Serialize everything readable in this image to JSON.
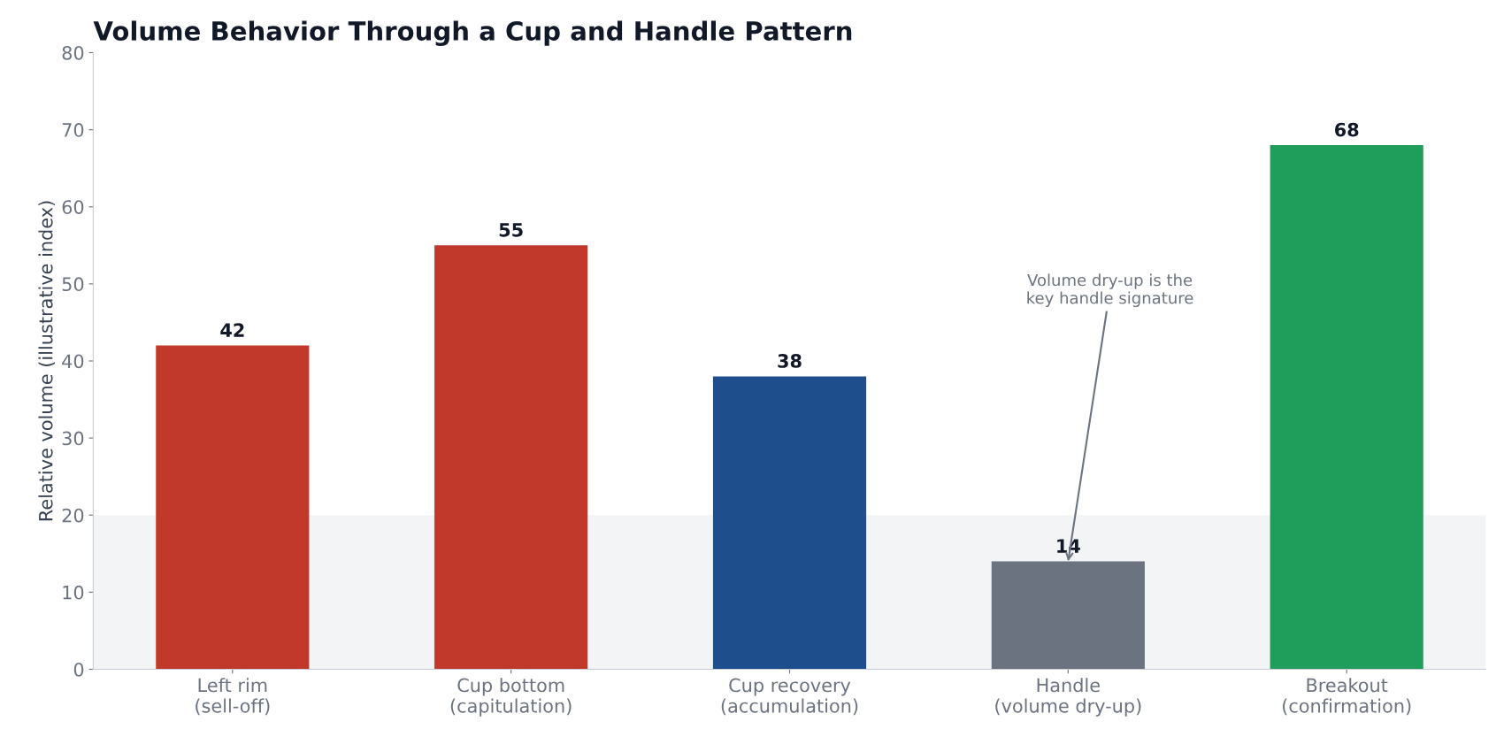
{
  "chart_data": {
    "type": "bar",
    "title": "Volume Behavior Through a Cup and Handle Pattern",
    "ylabel": "Relative volume (illustrative index)",
    "categories": [
      "Left rim\n(sell-off)",
      "Cup bottom\n(capitulation)",
      "Cup recovery\n(accumulation)",
      "Handle\n(volume dry-up)",
      "Breakout\n(confirmation)"
    ],
    "values": [
      42,
      55,
      38,
      14,
      68
    ],
    "colors": [
      "#c0392b",
      "#c0392b",
      "#1f4e8c",
      "#6b7280",
      "#1e9e5a"
    ],
    "ylim": [
      0,
      80
    ],
    "yticks": [
      0,
      10,
      20,
      30,
      40,
      50,
      60,
      70,
      80
    ],
    "grid": false,
    "data_labels": true,
    "bands": [
      {
        "axis": "y",
        "from": 0,
        "to": 20,
        "label": null,
        "color": "#f3f4f6"
      }
    ],
    "annotations": [
      {
        "text": "Volume dry-up is the\nkey handle signature",
        "x": "Handle\n(volume dry-up)",
        "y": 14
      }
    ]
  }
}
